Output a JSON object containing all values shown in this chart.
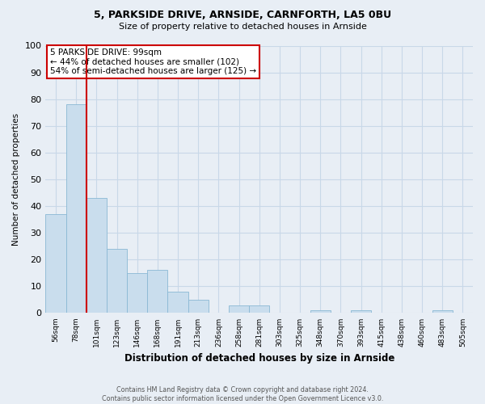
{
  "title1": "5, PARKSIDE DRIVE, ARNSIDE, CARNFORTH, LA5 0BU",
  "title2": "Size of property relative to detached houses in Arnside",
  "xlabel": "Distribution of detached houses by size in Arnside",
  "ylabel": "Number of detached properties",
  "categories": [
    "56sqm",
    "78sqm",
    "101sqm",
    "123sqm",
    "146sqm",
    "168sqm",
    "191sqm",
    "213sqm",
    "236sqm",
    "258sqm",
    "281sqm",
    "303sqm",
    "325sqm",
    "348sqm",
    "370sqm",
    "393sqm",
    "415sqm",
    "438sqm",
    "460sqm",
    "483sqm",
    "505sqm"
  ],
  "values": [
    37,
    78,
    43,
    24,
    15,
    16,
    8,
    5,
    0,
    3,
    3,
    0,
    0,
    1,
    0,
    1,
    0,
    0,
    0,
    1,
    0
  ],
  "bar_color": "#c9dded",
  "bar_edge_color": "#8ab8d4",
  "vline_x_index": 2,
  "vline_color": "#cc0000",
  "annotation_text": "5 PARKSIDE DRIVE: 99sqm\n← 44% of detached houses are smaller (102)\n54% of semi-detached houses are larger (125) →",
  "annotation_box_color": "white",
  "annotation_box_edge_color": "#cc0000",
  "ylim": [
    0,
    100
  ],
  "yticks": [
    0,
    10,
    20,
    30,
    40,
    50,
    60,
    70,
    80,
    90,
    100
  ],
  "grid_color": "#c8d8e8",
  "footnote": "Contains HM Land Registry data © Crown copyright and database right 2024.\nContains public sector information licensed under the Open Government Licence v3.0.",
  "bg_color": "#e8eef5"
}
